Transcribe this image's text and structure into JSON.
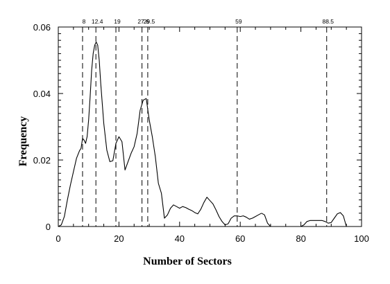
{
  "chart_data": {
    "type": "line",
    "title": "",
    "xlabel": "Number of Sectors",
    "ylabel": "Frequency",
    "xlim": [
      0,
      100
    ],
    "ylim": [
      0,
      0.06
    ],
    "x_ticks": [
      0,
      20,
      40,
      60,
      80,
      100
    ],
    "x_tick_labels": [
      "0",
      "20",
      "40",
      "60",
      "80",
      "100"
    ],
    "y_ticks": [
      0,
      0.02,
      0.04,
      0.06
    ],
    "y_tick_labels": [
      "0",
      "0.02",
      "0.04",
      "0.06"
    ],
    "grid": false,
    "legend": "none",
    "line_color": "#000000",
    "reference_lines": [
      {
        "x": 8,
        "label": "8"
      },
      {
        "x": 12.4,
        "label": "12.4"
      },
      {
        "x": 19,
        "label": "19"
      },
      {
        "x": 27.6,
        "label": "27.6"
      },
      {
        "x": 29.5,
        "label": "29.5"
      },
      {
        "x": 59,
        "label": "59"
      },
      {
        "x": 88.5,
        "label": "88.5"
      }
    ],
    "segments": [
      {
        "x": [
          0,
          1,
          2,
          3,
          4,
          5,
          6,
          7,
          7.5,
          8,
          8.5,
          9,
          9.5,
          10,
          10.5,
          11,
          11.5,
          12,
          12.5,
          13,
          13.5,
          14,
          15,
          16,
          17,
          18,
          19,
          20,
          21,
          22,
          23,
          24,
          25,
          26,
          27,
          28,
          29,
          30,
          31,
          32,
          33,
          34,
          35,
          36,
          37,
          38,
          39,
          40,
          41,
          42,
          43,
          44,
          45,
          46,
          47,
          48,
          49,
          50,
          51,
          52,
          53,
          54,
          55,
          56,
          57,
          58,
          59,
          60,
          61,
          62,
          63,
          64,
          65,
          66,
          67
        ],
        "y": [
          0.0,
          0.0005,
          0.003,
          0.008,
          0.0125,
          0.0165,
          0.0205,
          0.0228,
          0.0235,
          0.0265,
          0.026,
          0.025,
          0.027,
          0.032,
          0.039,
          0.047,
          0.052,
          0.0545,
          0.0555,
          0.0545,
          0.05,
          0.043,
          0.031,
          0.023,
          0.0195,
          0.0198,
          0.025,
          0.027,
          0.0255,
          0.017,
          0.0195,
          0.022,
          0.024,
          0.028,
          0.035,
          0.038,
          0.0385,
          0.032,
          0.027,
          0.021,
          0.013,
          0.01,
          0.0025,
          0.0035,
          0.0055,
          0.0065,
          0.006,
          0.0055,
          0.006,
          0.0057,
          0.0052,
          0.0048,
          0.0042,
          0.0038,
          0.0052,
          0.0072,
          0.0088,
          0.0078,
          0.0068,
          0.005,
          0.003,
          0.0015,
          0.0005,
          0.0008,
          0.0025,
          0.0032,
          0.0032,
          0.003,
          0.0032,
          0.0028,
          0.0022,
          0.0025,
          0.003,
          0.0035,
          0.004
        ]
      },
      {
        "x": [
          67,
          68,
          69,
          70
        ],
        "y": [
          0.004,
          0.0035,
          0.001,
          0.0
        ]
      },
      {
        "x": [
          80,
          81,
          82,
          83,
          84,
          85,
          86,
          87,
          88,
          89,
          90,
          91,
          92,
          93,
          94,
          95
        ],
        "y": [
          0.0,
          0.0005,
          0.0015,
          0.0018,
          0.0018,
          0.0018,
          0.0018,
          0.0018,
          0.0015,
          0.001,
          0.0012,
          0.0025,
          0.0038,
          0.0042,
          0.0032,
          0.0
        ]
      }
    ]
  }
}
